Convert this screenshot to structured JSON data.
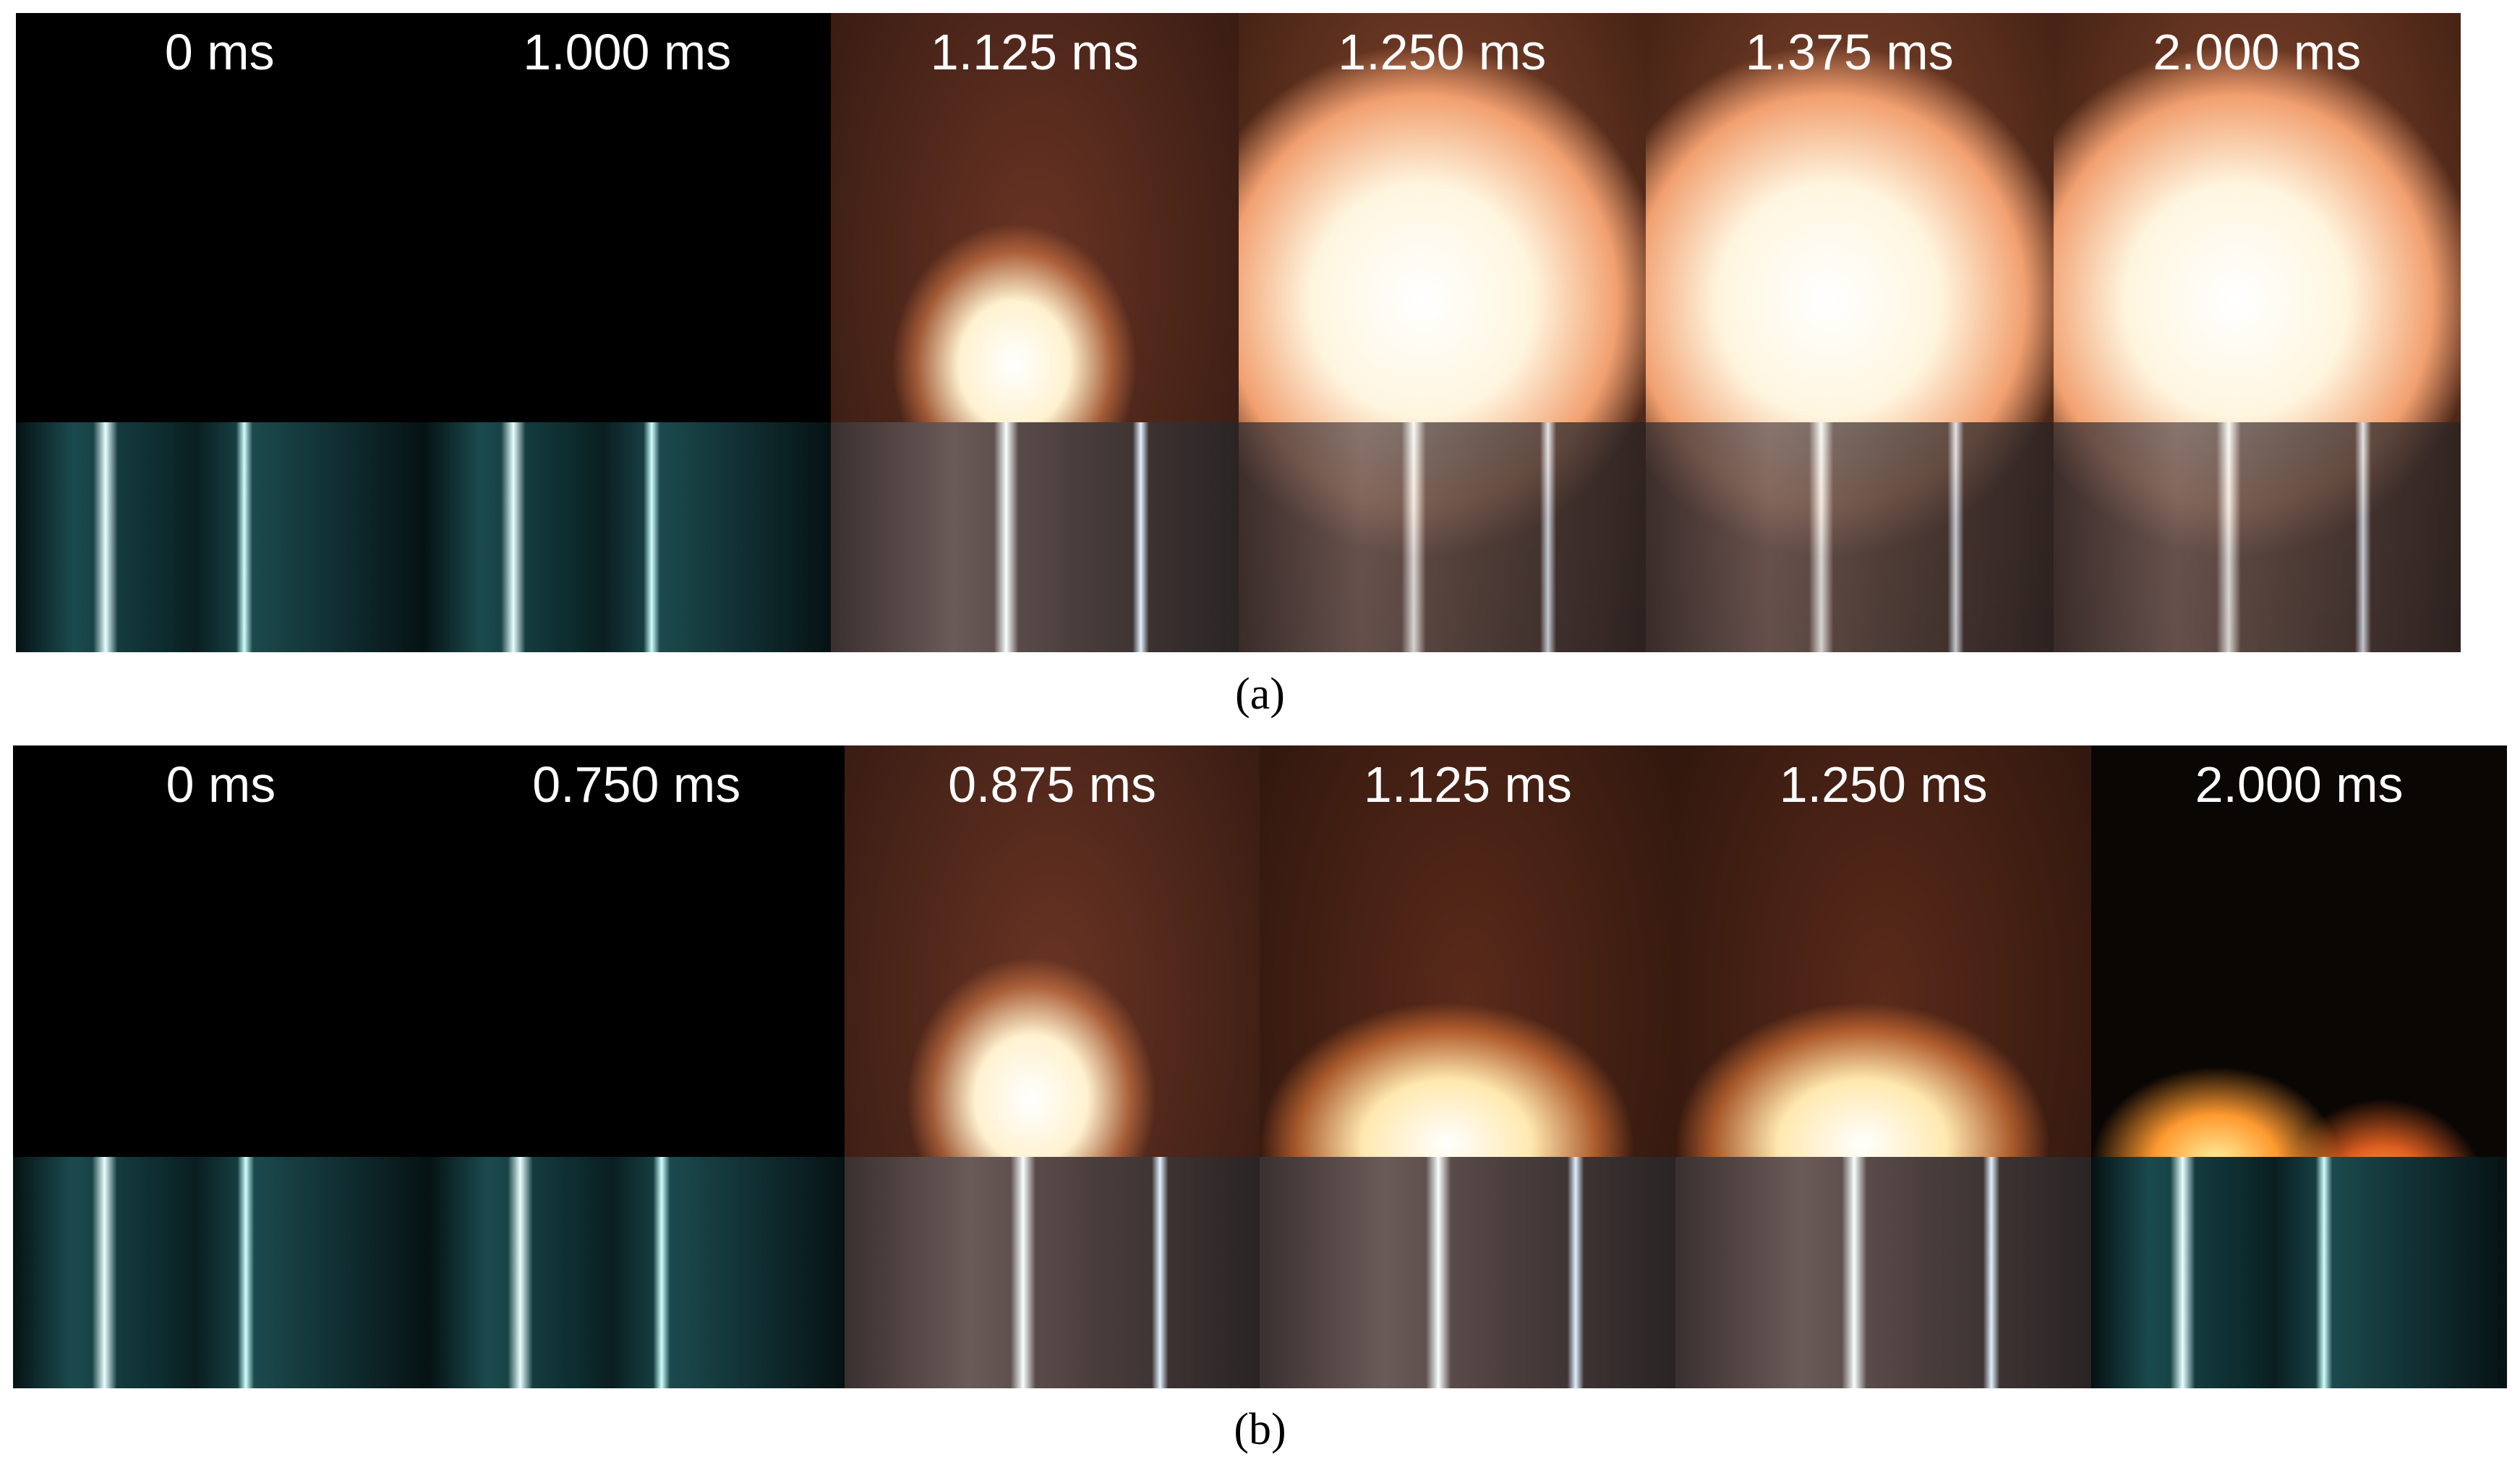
{
  "panels": [
    {
      "frames": [
        {
          "label": "0 ms"
        },
        {
          "label": "1.000 ms"
        },
        {
          "label": "1.125 ms"
        },
        {
          "label": "1.250 ms"
        },
        {
          "label": "1.375 ms"
        },
        {
          "label": "2.000 ms"
        }
      ],
      "caption": "(a)"
    },
    {
      "frames": [
        {
          "label": "0 ms"
        },
        {
          "label": "0.750 ms"
        },
        {
          "label": "0.875 ms"
        },
        {
          "label": "1.125 ms"
        },
        {
          "label": "1.250 ms"
        },
        {
          "label": "2.000 ms"
        }
      ],
      "caption": "(b)"
    }
  ]
}
